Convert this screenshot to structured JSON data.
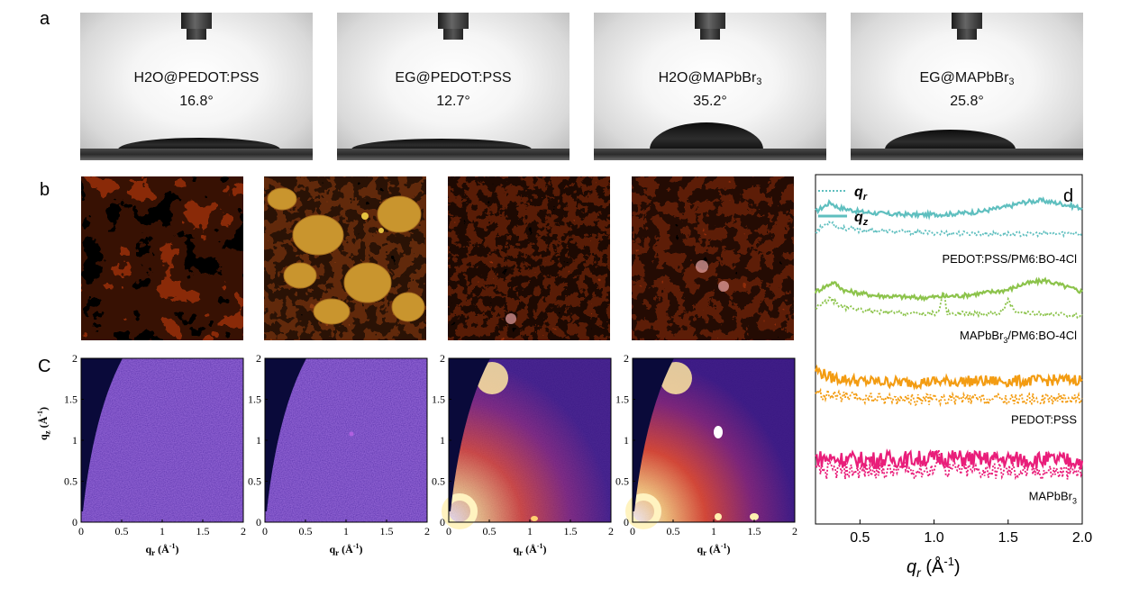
{
  "panel_labels": {
    "a": "a",
    "b": "b",
    "c": "C",
    "d": "d"
  },
  "contact_angle": [
    {
      "name_main": "H2O@PEDOT:PSS",
      "name_sub": "",
      "angle": "16.8°"
    },
    {
      "name_main": "EG@PEDOT:PSS",
      "name_sub": "",
      "angle": "12.7°"
    },
    {
      "name_main": "H2O@MAPbBr",
      "name_sub": "3",
      "angle": "35.2°"
    },
    {
      "name_main": "EG@MAPbBr",
      "name_sub": "3",
      "angle": "25.8°"
    }
  ],
  "giwaxs": {
    "ylabel_main": "q",
    "ylabel_sub": "z",
    "ylabel_unit": " (Å",
    "ylabel_exp": "-1",
    "ylabel_close": ")",
    "xlabel_main": "q",
    "xlabel_sub": "r",
    "xlabel_unit": " (Å",
    "xlabel_exp": "-1",
    "xlabel_close": ")",
    "yticks": [
      "0",
      "0.5",
      "1",
      "1.5",
      "2"
    ],
    "xticks": [
      "0",
      "0.5",
      "1",
      "1.5",
      "2"
    ]
  },
  "chart_data": {
    "type": "line",
    "title": "",
    "xlabel": "q",
    "xlabel_sub": "r",
    "xlabel_unit": " (Å",
    "xlabel_exp": "-1",
    "xlabel_close": ")",
    "xlim": [
      0.2,
      2.0
    ],
    "xticks": [
      "0.5",
      "1.0",
      "1.5",
      "2.0"
    ],
    "legend": [
      {
        "name": "q",
        "sub": "r",
        "style": "dotted"
      },
      {
        "name": "q",
        "sub": "z",
        "style": "solid"
      }
    ],
    "series": [
      {
        "label_main": "PEDOT:PSS/PM6:BO-4Cl",
        "label_sub": "",
        "label_tail": "",
        "color": "#5fbfbf",
        "offset": 0.82,
        "qz": [
          [
            0.2,
            0.68
          ],
          [
            0.3,
            0.93
          ],
          [
            0.35,
            0.8
          ],
          [
            0.5,
            0.68
          ],
          [
            0.7,
            0.62
          ],
          [
            0.9,
            0.6
          ],
          [
            1.1,
            0.62
          ],
          [
            1.3,
            0.68
          ],
          [
            1.5,
            0.82
          ],
          [
            1.6,
            0.93
          ],
          [
            1.72,
            0.98
          ],
          [
            1.85,
            0.9
          ],
          [
            2.0,
            0.78
          ]
        ],
        "qr": [
          [
            0.2,
            0.35
          ],
          [
            0.3,
            0.62
          ],
          [
            0.35,
            0.45
          ],
          [
            0.5,
            0.38
          ],
          [
            0.8,
            0.33
          ],
          [
            1.1,
            0.3
          ],
          [
            1.4,
            0.28
          ],
          [
            1.7,
            0.28
          ],
          [
            2.0,
            0.3
          ]
        ]
      },
      {
        "label_main": "MAPbBr",
        "label_sub": "3",
        "label_tail": "/PM6:BO-4Cl",
        "color": "#8cc34b",
        "offset": 0.6,
        "qz": [
          [
            0.2,
            0.6
          ],
          [
            0.32,
            0.85
          ],
          [
            0.4,
            0.62
          ],
          [
            0.6,
            0.5
          ],
          [
            0.9,
            0.44
          ],
          [
            1.2,
            0.5
          ],
          [
            1.5,
            0.65
          ],
          [
            1.6,
            0.8
          ],
          [
            1.75,
            0.9
          ],
          [
            1.9,
            0.72
          ],
          [
            2.0,
            0.6
          ]
        ],
        "qr": [
          [
            0.2,
            0.35
          ],
          [
            0.3,
            0.6
          ],
          [
            0.38,
            0.38
          ],
          [
            0.6,
            0.25
          ],
          [
            0.9,
            0.2
          ],
          [
            1.03,
            0.22
          ],
          [
            1.06,
            0.82
          ],
          [
            1.09,
            0.22
          ],
          [
            1.3,
            0.2
          ],
          [
            1.45,
            0.22
          ],
          [
            1.5,
            0.55
          ],
          [
            1.55,
            0.22
          ],
          [
            1.8,
            0.18
          ],
          [
            2.0,
            0.16
          ]
        ]
      },
      {
        "label_main": "PEDOT:PSS",
        "label_sub": "",
        "label_tail": "",
        "color": "#f39c12",
        "offset": 0.36,
        "qz": [
          [
            0.2,
            0.75
          ],
          [
            0.3,
            0.55
          ],
          [
            0.5,
            0.45
          ],
          [
            0.8,
            0.42
          ],
          [
            1.2,
            0.45
          ],
          [
            1.6,
            0.45
          ],
          [
            2.0,
            0.5
          ]
        ],
        "qr": [
          [
            0.2,
            0.3
          ],
          [
            0.3,
            0.25
          ],
          [
            0.5,
            0.18
          ],
          [
            1.0,
            0.15
          ],
          [
            1.5,
            0.15
          ],
          [
            2.0,
            0.18
          ]
        ]
      },
      {
        "label_main": "MAPbBr",
        "label_sub": "3",
        "label_tail": "",
        "color": "#e91e7a",
        "offset": 0.14,
        "qz": [
          [
            0.2,
            0.45
          ],
          [
            0.5,
            0.4
          ],
          [
            0.8,
            0.42
          ],
          [
            1.1,
            0.45
          ],
          [
            1.4,
            0.42
          ],
          [
            1.7,
            0.4
          ],
          [
            2.0,
            0.38
          ]
        ],
        "qr": [
          [
            0.2,
            0.3
          ],
          [
            0.5,
            0.3
          ],
          [
            1.0,
            0.32
          ],
          [
            1.04,
            0.75
          ],
          [
            1.08,
            0.32
          ],
          [
            1.4,
            0.3
          ],
          [
            2.0,
            0.25
          ]
        ]
      }
    ]
  }
}
